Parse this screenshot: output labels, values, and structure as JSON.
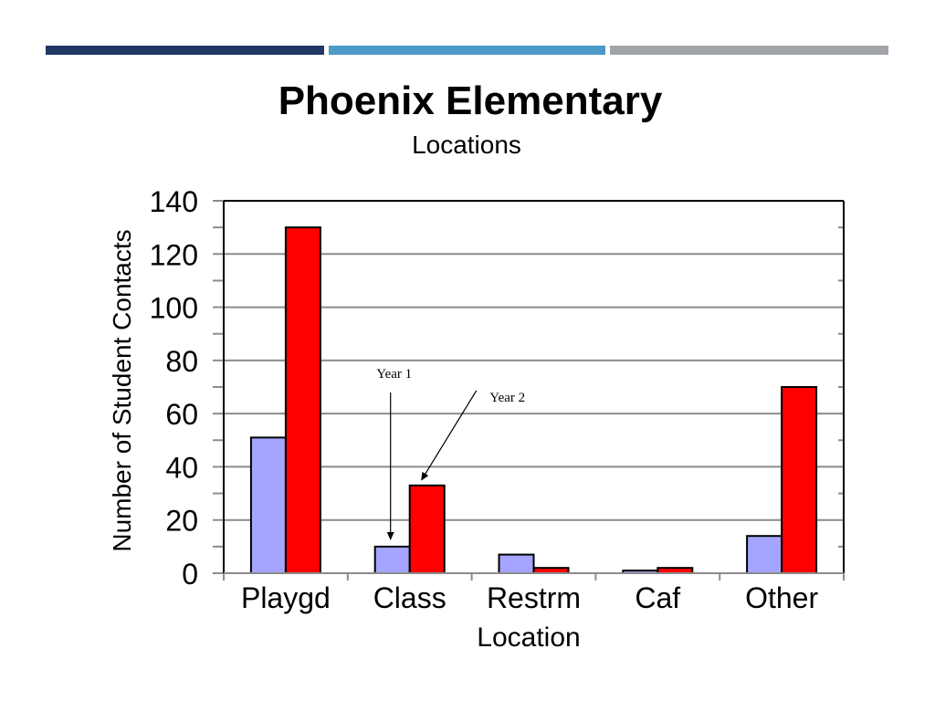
{
  "header": {
    "stripe_colors": [
      "#1f3864",
      "#4b9ac8",
      "#a0a4a8"
    ]
  },
  "chart_data": {
    "type": "bar",
    "title": "Phoenix Elementary",
    "subtitle": "Locations",
    "xlabel": "Location",
    "ylabel": "Number of Student Contacts",
    "categories": [
      "Playgd",
      "Class",
      "Restrm",
      "Caf",
      "Other"
    ],
    "series": [
      {
        "name": "Year 1",
        "color": "#a5a5ff",
        "values": [
          51,
          10,
          7,
          1,
          14
        ]
      },
      {
        "name": "Year 2",
        "color": "#ff0000",
        "values": [
          130,
          33,
          2,
          2,
          70
        ]
      }
    ],
    "ylim": [
      0,
      140
    ],
    "yticks": [
      0,
      20,
      40,
      60,
      80,
      100,
      120,
      140
    ],
    "grid": true,
    "annotations": [
      {
        "text": "Year 1",
        "points_to": {
          "series": 0,
          "category": "Class"
        }
      },
      {
        "text": "Year 2",
        "points_to": {
          "series": 1,
          "category": "Class"
        }
      }
    ]
  }
}
